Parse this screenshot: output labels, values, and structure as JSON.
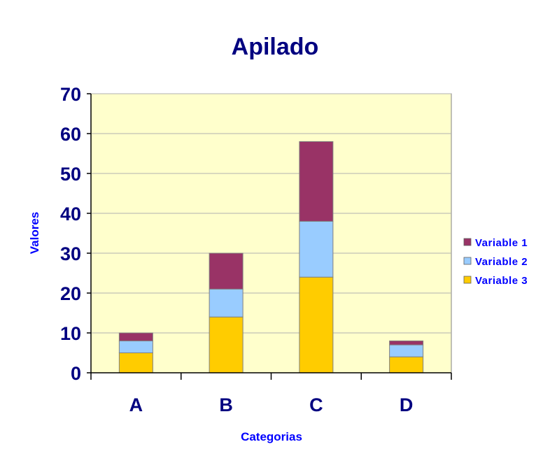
{
  "chart_data": {
    "type": "bar",
    "stacked": true,
    "title": "Apilado",
    "xlabel": "Categorias",
    "ylabel": "Valores",
    "categories": [
      "A",
      "B",
      "C",
      "D"
    ],
    "ylim": [
      0,
      70
    ],
    "yticks": [
      0,
      10,
      20,
      30,
      40,
      50,
      60,
      70
    ],
    "grid": true,
    "legend_position": "right",
    "series": [
      {
        "name": "Variable 3",
        "values": [
          5,
          14,
          24,
          4
        ],
        "color": "#ffcc00"
      },
      {
        "name": "Variable 2",
        "values": [
          3,
          7,
          14,
          3
        ],
        "color": "#99ccff"
      },
      {
        "name": "Variable 1",
        "values": [
          2,
          9,
          20,
          1
        ],
        "color": "#993366"
      }
    ],
    "legend_order": [
      "Variable 1",
      "Variable 2",
      "Variable 3"
    ],
    "colors": {
      "plot_background": "#ffffcc",
      "text": "#000080",
      "axis_label": "#0000ff",
      "grid": "#b0b0b0"
    }
  }
}
